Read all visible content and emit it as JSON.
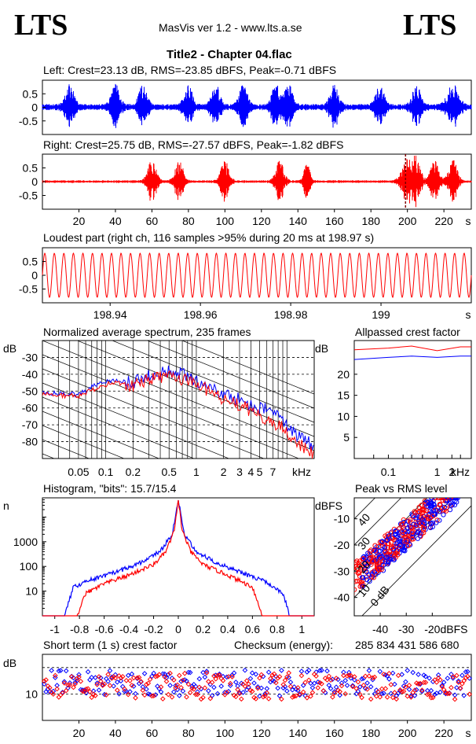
{
  "header": {
    "logo_left": "LTS",
    "logo_right": "LTS",
    "app": "MasVis ver 1.2 - www.lts.a.se",
    "title": "Title2 - Chapter 04.flac"
  },
  "colors": {
    "left": "#0000ff",
    "right": "#ff0000",
    "frame": "#000000"
  },
  "chart_data": [
    {
      "id": "left_waveform",
      "type": "line",
      "title": "Left: Crest=23.13 dB, RMS=-23.85 dBFS, Peak=-0.71 dBFS",
      "y_ticks": [
        "0.5",
        "0",
        "-0.5"
      ],
      "ylim": [
        -1,
        1
      ],
      "xlim": [
        0,
        235
      ],
      "series": [
        {
          "channel": "left",
          "peak": 0.92
        }
      ]
    },
    {
      "id": "right_waveform",
      "type": "line",
      "title": "Right: Crest=25.75 dB, RMS=-27.57 dBFS, Peak=-1.82 dBFS",
      "y_ticks": [
        "0.5",
        "0",
        "-0.5"
      ],
      "x_ticks": [
        "20",
        "40",
        "60",
        "80",
        "100",
        "120",
        "140",
        "160",
        "180",
        "200",
        "220"
      ],
      "x_unit": "s",
      "xlim": [
        0,
        235
      ],
      "ylim": [
        -1,
        1
      ],
      "marker_x": 198.97,
      "series": [
        {
          "channel": "right",
          "peak": 0.81
        }
      ]
    },
    {
      "id": "loudest_part",
      "type": "line",
      "title": "Loudest part (right ch, 116 samples >95% during 20 ms at 198.97 s)",
      "y_ticks": [
        "0.5",
        "0",
        "-0.5"
      ],
      "x_ticks": [
        "198.94",
        "198.96",
        "198.98",
        "199"
      ],
      "x_unit": "s",
      "xlim": [
        198.925,
        199.02
      ],
      "ylim": [
        -1,
        1
      ],
      "cycles": 45,
      "amplitude": 0.8
    },
    {
      "id": "spectrum",
      "type": "line",
      "title": "Normalized average spectrum, 235 frames",
      "ylabel": "dB",
      "y_ticks": [
        "-30",
        "-40",
        "-50",
        "-60",
        "-70",
        "-80"
      ],
      "x_ticks": [
        "0.05",
        "0.1",
        "0.2",
        "0.5",
        "1",
        "2",
        "3",
        "4",
        "5",
        "7"
      ],
      "x_unit": "kHz",
      "xscale": "log",
      "xlim": [
        0.02,
        20
      ],
      "ylim": [
        -90,
        -20
      ],
      "series": [
        {
          "channel": "left",
          "points": [
            [
              0.02,
              -51
            ],
            [
              0.05,
              -52
            ],
            [
              0.08,
              -46
            ],
            [
              0.12,
              -43
            ],
            [
              0.2,
              -45
            ],
            [
              0.3,
              -40
            ],
            [
              0.5,
              -38
            ],
            [
              0.7,
              -40
            ],
            [
              1,
              -44
            ],
            [
              1.5,
              -48
            ],
            [
              2,
              -52
            ],
            [
              3,
              -55
            ],
            [
              4,
              -58
            ],
            [
              5,
              -60
            ],
            [
              7,
              -62
            ],
            [
              10,
              -70
            ],
            [
              14,
              -78
            ],
            [
              20,
              -82
            ]
          ]
        },
        {
          "channel": "right",
          "points": [
            [
              0.02,
              -52
            ],
            [
              0.05,
              -53
            ],
            [
              0.08,
              -48
            ],
            [
              0.12,
              -45
            ],
            [
              0.2,
              -47
            ],
            [
              0.3,
              -43
            ],
            [
              0.5,
              -41
            ],
            [
              0.7,
              -43
            ],
            [
              1,
              -47
            ],
            [
              1.5,
              -50
            ],
            [
              2,
              -55
            ],
            [
              3,
              -58
            ],
            [
              4,
              -62
            ],
            [
              5,
              -65
            ],
            [
              7,
              -68
            ],
            [
              10,
              -74
            ],
            [
              14,
              -82
            ],
            [
              20,
              -88
            ]
          ]
        }
      ]
    },
    {
      "id": "allpassed_crest",
      "type": "line",
      "title": "Allpassed crest factor",
      "ylabel": "dB",
      "y_ticks": [
        "20",
        "15",
        "10",
        "5"
      ],
      "x_ticks": [
        "0.1",
        "1",
        "2"
      ],
      "x_unit": "kHz",
      "xscale": "log",
      "xlim": [
        0.02,
        5
      ],
      "ylim": [
        0,
        28
      ],
      "series": [
        {
          "channel": "left",
          "points": [
            [
              0.02,
              23.5
            ],
            [
              0.1,
              24
            ],
            [
              0.3,
              24.3
            ],
            [
              1,
              24
            ],
            [
              3,
              24.3
            ],
            [
              5,
              24.3
            ]
          ]
        },
        {
          "channel": "right",
          "points": [
            [
              0.02,
              25.8
            ],
            [
              0.1,
              26.2
            ],
            [
              0.3,
              26.7
            ],
            [
              1,
              25.6
            ],
            [
              3,
              26.5
            ],
            [
              5,
              26.5
            ]
          ]
        }
      ]
    },
    {
      "id": "histogram",
      "type": "line",
      "title": "Histogram, \"bits\": 15.7/15.4",
      "ylabel": "n",
      "y_ticks": [
        "1000",
        "100",
        "10"
      ],
      "x_ticks": [
        "-1",
        "-0.8",
        "-0.6",
        "-0.4",
        "-0.2",
        "0",
        "0.2",
        "0.4",
        "0.6",
        "0.8",
        "1"
      ],
      "yscale": "log",
      "xlim": [
        -1.1,
        1.1
      ],
      "ylim": [
        1,
        60000
      ],
      "series": [
        {
          "channel": "left",
          "points": [
            [
              -0.92,
              1
            ],
            [
              -0.85,
              15
            ],
            [
              -0.7,
              30
            ],
            [
              -0.5,
              60
            ],
            [
              -0.3,
              150
            ],
            [
              -0.15,
              400
            ],
            [
              -0.05,
              2000
            ],
            [
              0,
              50000
            ],
            [
              0.05,
              2000
            ],
            [
              0.15,
              400
            ],
            [
              0.3,
              150
            ],
            [
              0.5,
              60
            ],
            [
              0.7,
              25
            ],
            [
              0.85,
              8
            ],
            [
              0.9,
              1
            ]
          ]
        },
        {
          "channel": "right",
          "points": [
            [
              -0.82,
              1
            ],
            [
              -0.75,
              8
            ],
            [
              -0.6,
              20
            ],
            [
              -0.4,
              45
            ],
            [
              -0.2,
              120
            ],
            [
              -0.1,
              400
            ],
            [
              -0.03,
              3000
            ],
            [
              0,
              55000
            ],
            [
              0.03,
              3000
            ],
            [
              0.1,
              400
            ],
            [
              0.2,
              120
            ],
            [
              0.4,
              45
            ],
            [
              0.6,
              15
            ],
            [
              0.68,
              1
            ]
          ]
        }
      ]
    },
    {
      "id": "peak_vs_rms",
      "type": "scatter",
      "title": "Peak vs RMS level",
      "ylabel": "dBFS",
      "xlabel": "dBFS",
      "y_ticks": [
        "-10",
        "-20",
        "-30",
        "-40"
      ],
      "x_ticks": [
        "-40",
        "-30",
        "-20"
      ],
      "diag_labels": [
        "40",
        "30",
        "20",
        "10",
        "0 dB"
      ],
      "xlim": [
        -50,
        -5
      ],
      "ylim": [
        -47,
        -2
      ],
      "points": 235
    },
    {
      "id": "short_term_crest",
      "type": "scatter",
      "title": "Short term (1 s) crest factor",
      "ylabel": "dB",
      "y_ticks": [
        "10"
      ],
      "x_ticks": [
        "20",
        "40",
        "60",
        "80",
        "100",
        "120",
        "140",
        "160",
        "180",
        "200",
        "220"
      ],
      "x_unit": "s",
      "xlim": [
        0,
        235
      ],
      "ylim": [
        0,
        25
      ],
      "dashed_levels": [
        10,
        20
      ],
      "series": [
        {
          "channel": "left",
          "mean": 14
        },
        {
          "channel": "right",
          "mean": 13
        }
      ]
    }
  ],
  "checksum": {
    "label": "Checksum (energy):",
    "value": "285 834 431 586 680"
  }
}
